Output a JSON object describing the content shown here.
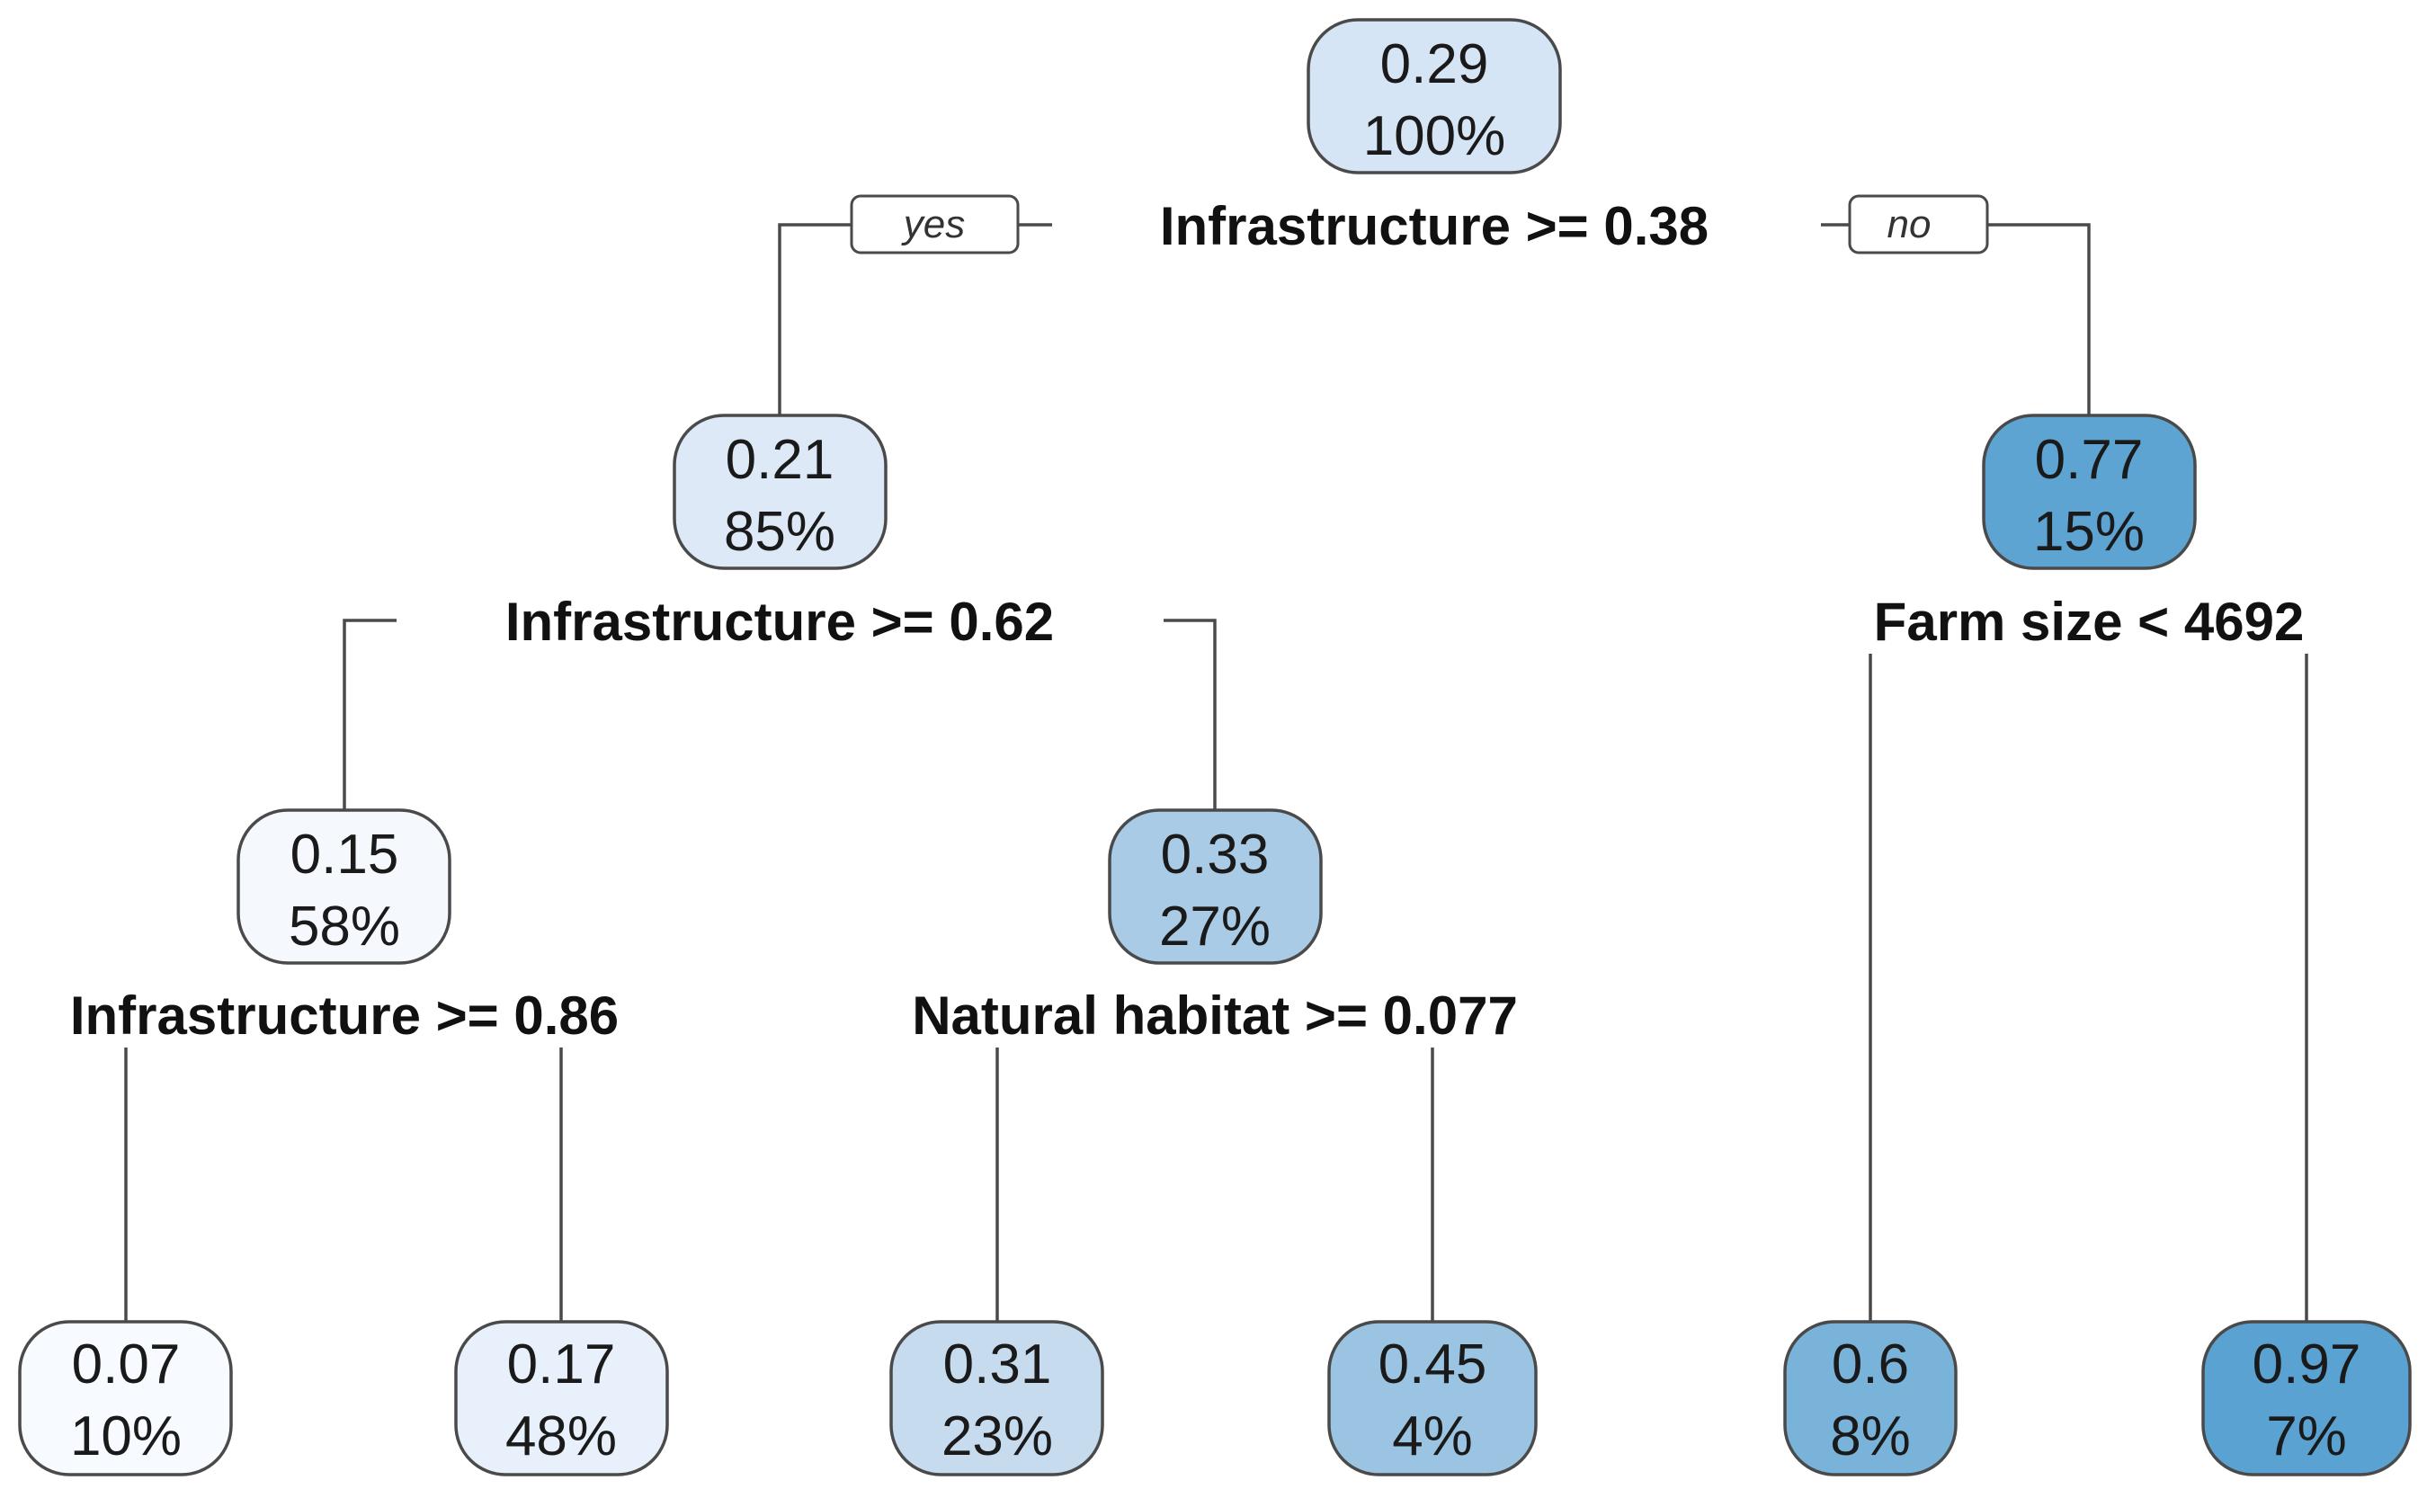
{
  "tree": {
    "root": {
      "value": "0.29",
      "percent": "100%",
      "split": "Infrastructure >= 0.38",
      "color": "#d6e5f5"
    },
    "yes_label": "yes",
    "no_label": "no",
    "left": {
      "value": "0.21",
      "percent": "85%",
      "split": "Infrastructure >= 0.62",
      "color": "#dde9f7"
    },
    "right": {
      "value": "0.77",
      "percent": "15%",
      "split": "Farm size < 4692",
      "color": "#5ea4d3"
    },
    "left_left": {
      "value": "0.15",
      "percent": "58%",
      "split": "Infrastructure >= 0.86",
      "color": "#f5f9fe"
    },
    "left_right": {
      "value": "0.33",
      "percent": "27%",
      "split": "Natural habitat >= 0.077",
      "color": "#a9cbe6"
    },
    "leaves": [
      {
        "value": "0.07",
        "percent": "10%",
        "color": "#f7fbff"
      },
      {
        "value": "0.17",
        "percent": "48%",
        "color": "#e8f1fb"
      },
      {
        "value": "0.31",
        "percent": "23%",
        "color": "#c7dbef"
      },
      {
        "value": "0.45",
        "percent": "4%",
        "color": "#9ac4e2"
      },
      {
        "value": "0.6",
        "percent": "8%",
        "color": "#79b3da"
      },
      {
        "value": "0.97",
        "percent": "7%",
        "color": "#5aa2d1"
      }
    ]
  }
}
